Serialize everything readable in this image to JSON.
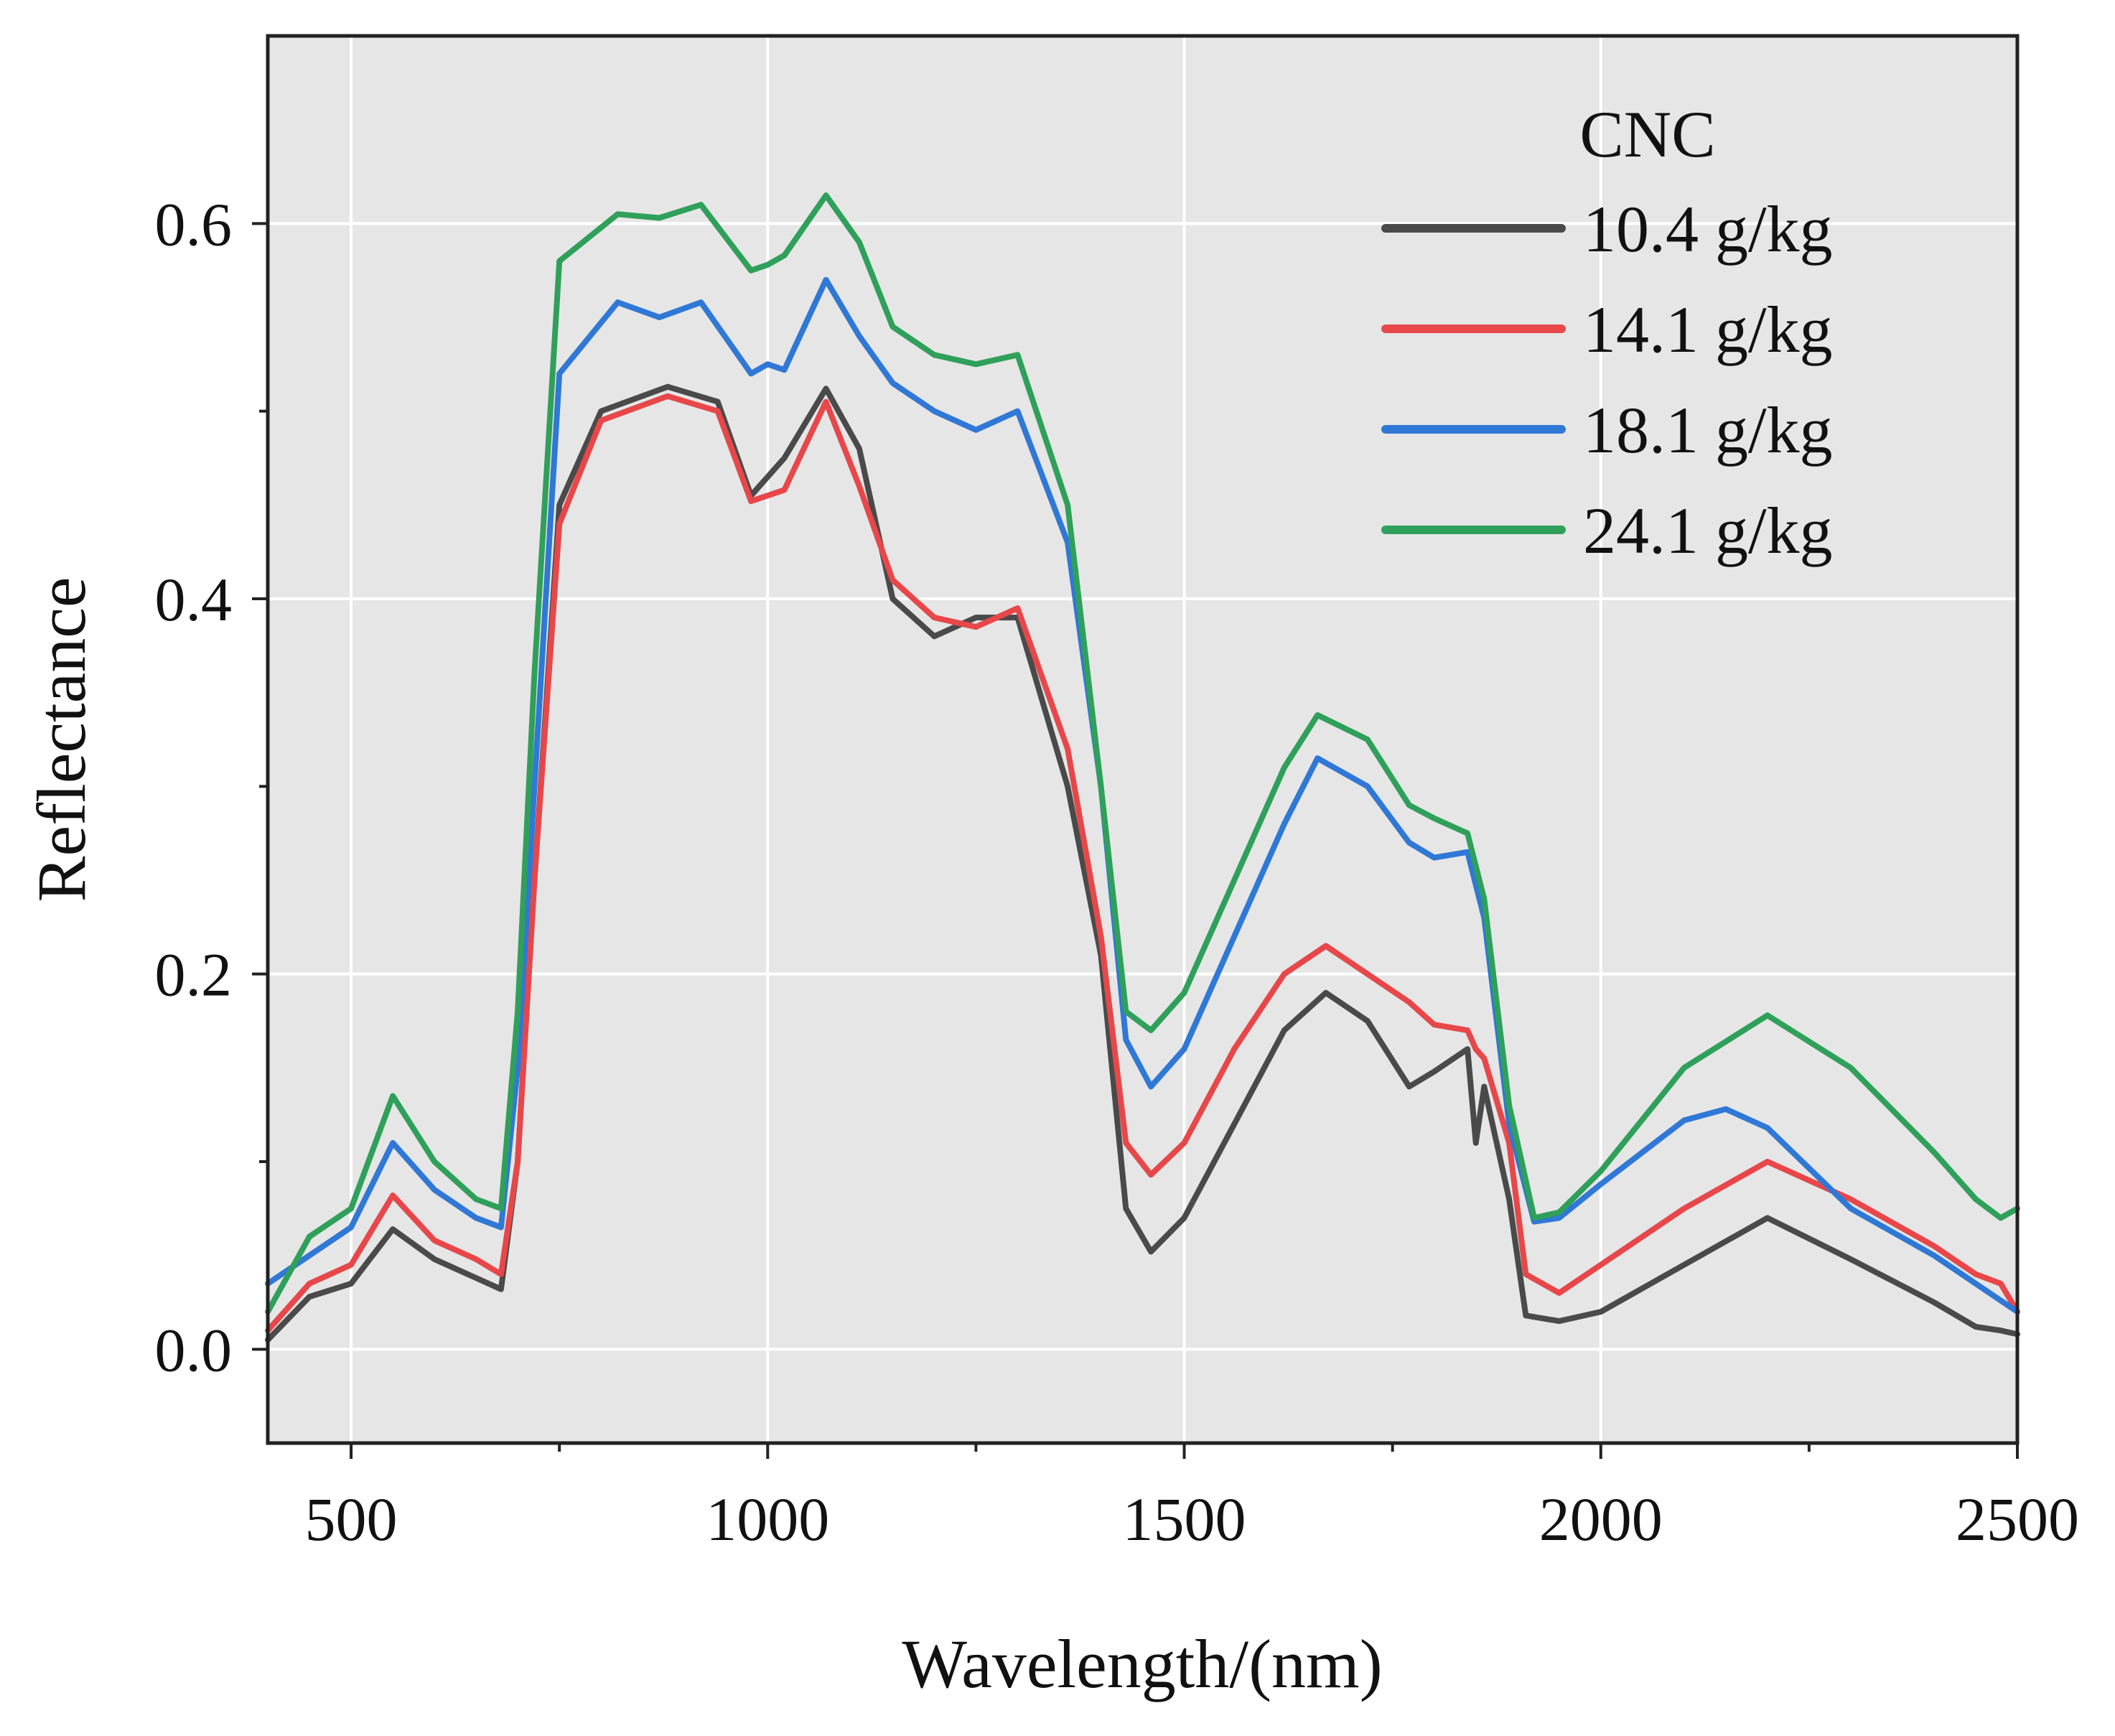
{
  "chart_data": {
    "type": "line",
    "title": "",
    "xlabel": "Wavelength/(nm)",
    "ylabel": "Reflectance",
    "xlim": [
      400,
      2500
    ],
    "ylim": [
      -0.05,
      0.7
    ],
    "xticks": [
      500,
      1000,
      1500,
      2000,
      2500
    ],
    "xtick_labels": [
      "500",
      "1000",
      "1500",
      "2000",
      "2500"
    ],
    "yticks": [
      0.0,
      0.2,
      0.4,
      0.6
    ],
    "ytick_labels": [
      "0.0",
      "0.2",
      "0.4",
      "0.6"
    ],
    "grid": true,
    "legend_title": "CNC",
    "legend_position": "top-right",
    "series": [
      {
        "name": "10.4 g/kg",
        "color": "#4a4a4a",
        "x": [
          400,
          450,
          500,
          550,
          600,
          650,
          680,
          700,
          720,
          750,
          800,
          880,
          940,
          980,
          1020,
          1070,
          1110,
          1150,
          1200,
          1250,
          1300,
          1360,
          1400,
          1430,
          1460,
          1500,
          1560,
          1620,
          1670,
          1720,
          1770,
          1800,
          1840,
          1850,
          1860,
          1890,
          1910,
          1950,
          2000,
          2100,
          2200,
          2300,
          2400,
          2450,
          2480,
          2500
        ],
        "values": [
          0.005,
          0.028,
          0.035,
          0.064,
          0.048,
          0.038,
          0.032,
          0.1,
          0.25,
          0.45,
          0.5,
          0.513,
          0.505,
          0.455,
          0.475,
          0.512,
          0.48,
          0.4,
          0.38,
          0.39,
          0.39,
          0.3,
          0.21,
          0.075,
          0.052,
          0.07,
          0.12,
          0.17,
          0.19,
          0.175,
          0.14,
          0.148,
          0.16,
          0.11,
          0.14,
          0.08,
          0.018,
          0.015,
          0.02,
          0.045,
          0.07,
          0.048,
          0.025,
          0.012,
          0.01,
          0.008
        ]
      },
      {
        "name": "14.1 g/kg",
        "color": "#e8474a",
        "x": [
          400,
          450,
          500,
          550,
          600,
          650,
          680,
          700,
          720,
          750,
          800,
          880,
          940,
          980,
          1020,
          1070,
          1110,
          1150,
          1200,
          1250,
          1300,
          1360,
          1400,
          1430,
          1460,
          1500,
          1560,
          1620,
          1670,
          1720,
          1770,
          1800,
          1840,
          1850,
          1860,
          1890,
          1910,
          1950,
          2000,
          2100,
          2200,
          2300,
          2400,
          2450,
          2480,
          2500
        ],
        "values": [
          0.01,
          0.035,
          0.045,
          0.082,
          0.058,
          0.048,
          0.04,
          0.1,
          0.25,
          0.44,
          0.495,
          0.508,
          0.5,
          0.452,
          0.458,
          0.505,
          0.46,
          0.41,
          0.39,
          0.385,
          0.395,
          0.32,
          0.22,
          0.11,
          0.093,
          0.11,
          0.16,
          0.2,
          0.215,
          0.2,
          0.185,
          0.173,
          0.17,
          0.16,
          0.155,
          0.11,
          0.04,
          0.03,
          0.045,
          0.075,
          0.1,
          0.08,
          0.055,
          0.04,
          0.035,
          0.02
        ]
      },
      {
        "name": "18.1 g/kg",
        "color": "#2f78d6",
        "x": [
          400,
          450,
          500,
          550,
          600,
          650,
          680,
          700,
          720,
          750,
          820,
          870,
          920,
          980,
          1000,
          1020,
          1070,
          1110,
          1150,
          1200,
          1250,
          1300,
          1360,
          1400,
          1430,
          1460,
          1500,
          1560,
          1620,
          1660,
          1720,
          1770,
          1800,
          1840,
          1860,
          1890,
          1920,
          1950,
          2000,
          2100,
          2150,
          2200,
          2300,
          2400,
          2450,
          2500
        ],
        "values": [
          0.035,
          0.05,
          0.065,
          0.11,
          0.085,
          0.07,
          0.065,
          0.15,
          0.3,
          0.52,
          0.558,
          0.55,
          0.558,
          0.52,
          0.525,
          0.522,
          0.57,
          0.54,
          0.515,
          0.5,
          0.49,
          0.5,
          0.43,
          0.3,
          0.165,
          0.14,
          0.16,
          0.22,
          0.28,
          0.315,
          0.3,
          0.27,
          0.262,
          0.265,
          0.23,
          0.12,
          0.068,
          0.07,
          0.088,
          0.122,
          0.128,
          0.118,
          0.075,
          0.05,
          0.035,
          0.02
        ]
      },
      {
        "name": "24.1 g/kg",
        "color": "#2fa05a",
        "x": [
          400,
          450,
          500,
          550,
          600,
          650,
          680,
          700,
          720,
          750,
          820,
          870,
          920,
          980,
          1000,
          1020,
          1070,
          1110,
          1150,
          1200,
          1250,
          1300,
          1360,
          1400,
          1430,
          1460,
          1500,
          1560,
          1620,
          1660,
          1720,
          1770,
          1800,
          1840,
          1860,
          1890,
          1920,
          1950,
          2000,
          2100,
          2200,
          2300,
          2400,
          2450,
          2480,
          2500
        ],
        "values": [
          0.02,
          0.06,
          0.075,
          0.135,
          0.1,
          0.08,
          0.075,
          0.18,
          0.36,
          0.58,
          0.605,
          0.603,
          0.61,
          0.575,
          0.578,
          0.583,
          0.615,
          0.59,
          0.545,
          0.53,
          0.525,
          0.53,
          0.45,
          0.3,
          0.18,
          0.17,
          0.19,
          0.25,
          0.31,
          0.338,
          0.325,
          0.29,
          0.283,
          0.275,
          0.24,
          0.13,
          0.07,
          0.073,
          0.095,
          0.15,
          0.178,
          0.15,
          0.105,
          0.08,
          0.07,
          0.075
        ]
      }
    ]
  }
}
